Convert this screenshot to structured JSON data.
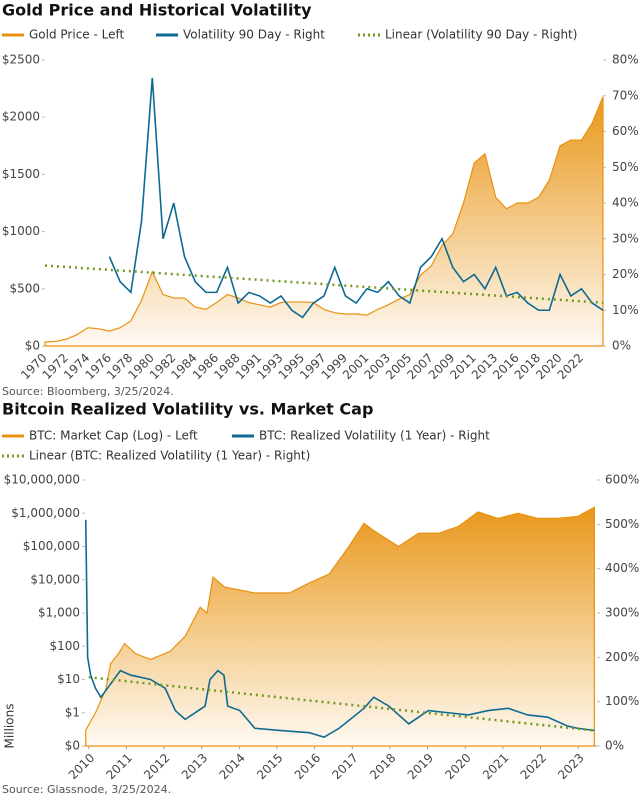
{
  "chart_data": [
    {
      "type": "line",
      "title": "Gold Price and Historical Volatility",
      "source": "Source: Bloomberg, 3/25/2024.",
      "categories": [
        "1970",
        null,
        "1972",
        null,
        "1974",
        null,
        "1976",
        null,
        "1978",
        null,
        "1980",
        null,
        "1982",
        null,
        "1984",
        null,
        "1986",
        null,
        "1988",
        null,
        "1991",
        null,
        "1993",
        null,
        "1995",
        null,
        "1997",
        null,
        "1999",
        null,
        "2001",
        null,
        "2003",
        null,
        "2005",
        null,
        "2007",
        null,
        "2009",
        null,
        "2011",
        null,
        "2013",
        null,
        "2016",
        null,
        "2018",
        null,
        "2020",
        null,
        "2022",
        null,
        null
      ],
      "series": [
        {
          "name": "Gold Price - Left",
          "color": "#e8920f",
          "style": "area",
          "values": [
            35,
            40,
            60,
            100,
            160,
            150,
            130,
            160,
            220,
            400,
            650,
            450,
            420,
            420,
            340,
            320,
            380,
            450,
            420,
            380,
            360,
            340,
            380,
            385,
            385,
            380,
            320,
            290,
            280,
            280,
            270,
            320,
            360,
            410,
            450,
            620,
            700,
            880,
            980,
            1250,
            1600,
            1680,
            1300,
            1200,
            1250,
            1250,
            1300,
            1450,
            1750,
            1800,
            1800,
            1950,
            2180
          ]
        },
        {
          "name": "Volatility 90 Day - Right",
          "color": "#0e6a92",
          "style": "line",
          "axis": "y2",
          "values": [
            null,
            null,
            null,
            null,
            null,
            null,
            25,
            18,
            15,
            35,
            75,
            30,
            40,
            25,
            18,
            15,
            15,
            22,
            12,
            15,
            14,
            12,
            14,
            10,
            8,
            12,
            14,
            22,
            14,
            12,
            16,
            15,
            18,
            14,
            12,
            22,
            25,
            30,
            22,
            18,
            20,
            16,
            22,
            14,
            15,
            12,
            10,
            10,
            20,
            14,
            16,
            12,
            10
          ]
        },
        {
          "name": "Linear (Volatility 90 Day - Right)",
          "color": "#6f9a1f",
          "style": "dotted",
          "axis": "y2",
          "values": [
            22.5,
            22.3,
            22.1,
            21.9,
            21.7,
            21.5,
            21.3,
            21.1,
            20.9,
            20.7,
            20.5,
            20.3,
            20.1,
            19.9,
            19.7,
            19.5,
            19.3,
            19.1,
            18.9,
            18.7,
            18.5,
            18.3,
            18.1,
            17.9,
            17.7,
            17.5,
            17.3,
            17.1,
            16.9,
            16.7,
            16.5,
            16.3,
            16.1,
            15.9,
            15.7,
            15.5,
            15.3,
            15.1,
            14.9,
            14.7,
            14.5,
            14.3,
            14.1,
            13.9,
            13.7,
            13.5,
            13.3,
            13.1,
            12.9,
            12.7,
            12.5,
            12.3,
            12.1
          ]
        }
      ],
      "ylim": [
        0,
        2500
      ],
      "yticks": [
        {
          "value": 0,
          "label": "$0"
        },
        {
          "value": 500,
          "label": "$500"
        },
        {
          "value": 1000,
          "label": "$1000"
        },
        {
          "value": 1500,
          "label": "$1500"
        },
        {
          "value": 2000,
          "label": "$2000"
        },
        {
          "value": 2500,
          "label": "$2500"
        }
      ],
      "y2lim": [
        0,
        80
      ],
      "y2ticks": [
        {
          "value": 0,
          "label": "0%"
        },
        {
          "value": 10,
          "label": "10%"
        },
        {
          "value": 20,
          "label": "20%"
        },
        {
          "value": 30,
          "label": "30%"
        },
        {
          "value": 40,
          "label": "40%"
        },
        {
          "value": 50,
          "label": "50%"
        },
        {
          "value": 60,
          "label": "60%"
        },
        {
          "value": 70,
          "label": "70%"
        },
        {
          "value": 80,
          "label": "80%"
        }
      ]
    },
    {
      "type": "line",
      "title": "Bitcoin Realized Volatility vs. Market Cap",
      "source": "Source: Glassnode, 3/25/2024.",
      "ylabel": "Millions",
      "xlim": [
        2009.9,
        2023.5
      ],
      "xticks": [
        2010,
        2011,
        2012,
        2013,
        2014,
        2015,
        2016,
        2017,
        2018,
        2019,
        2020,
        2021,
        2022,
        2023
      ],
      "series": [
        {
          "name": "BTC: Market Cap (Log) - Left",
          "color": "#e8920f",
          "style": "area",
          "x": [
            2009.92,
            2010.18,
            2010.45,
            2010.58,
            2010.79,
            2010.95,
            2011.24,
            2011.64,
            2012.16,
            2012.56,
            2012.96,
            2013.14,
            2013.3,
            2013.61,
            2014.41,
            2015.33,
            2015.86,
            2016.39,
            2016.91,
            2017.31,
            2017.57,
            2018.23,
            2018.76,
            2019.29,
            2019.82,
            2020.34,
            2020.87,
            2021.4,
            2021.93,
            2022.45,
            2022.98,
            2023.43
          ],
          "values": [
            0.3,
            1,
            5,
            30,
            60,
            120,
            60,
            40,
            70,
            200,
            1500,
            1000,
            12000,
            6000,
            4000,
            4000,
            8000,
            15000,
            100000,
            500000,
            300000,
            100000,
            250000,
            250000,
            400000,
            1100000,
            700000,
            1000000,
            700000,
            700000,
            800000,
            1500000
          ]
        },
        {
          "name": "BTC: Realized Volatility (1 Year) - Right",
          "color": "#0e6a92",
          "style": "line",
          "axis": "y2",
          "x": [
            2009.92,
            2009.97,
            2010.05,
            2010.18,
            2010.32,
            2010.58,
            2010.84,
            2011.11,
            2011.64,
            2012.03,
            2012.3,
            2012.56,
            2013.09,
            2013.22,
            2013.43,
            2013.59,
            2013.69,
            2014.01,
            2014.41,
            2015.07,
            2015.86,
            2016.25,
            2016.65,
            2017.31,
            2017.57,
            2017.97,
            2018.5,
            2019.02,
            2019.55,
            2020.08,
            2020.61,
            2021.14,
            2021.66,
            2022.19,
            2022.72,
            2022.98,
            2023.43
          ],
          "values": [
            510,
            200,
            160,
            130,
            110,
            140,
            170,
            160,
            150,
            130,
            80,
            60,
            90,
            150,
            170,
            160,
            90,
            80,
            40,
            35,
            30,
            20,
            40,
            85,
            110,
            90,
            50,
            80,
            75,
            70,
            80,
            85,
            70,
            65,
            45,
            40,
            35
          ]
        },
        {
          "name": "Linear (BTC: Realized Volatility (1 Year) - Right)",
          "color": "#6f9a1f",
          "style": "dotted",
          "axis": "y2",
          "x": [
            2010.0,
            2023.43
          ],
          "values": [
            155,
            35
          ]
        }
      ],
      "yscale": "log",
      "ylim": [
        0.1,
        10000000
      ],
      "yticks": [
        {
          "value": 0.1,
          "label": "$0"
        },
        {
          "value": 1,
          "label": "$1"
        },
        {
          "value": 10,
          "label": "$10"
        },
        {
          "value": 100,
          "label": "$100"
        },
        {
          "value": 1000,
          "label": "$1,000"
        },
        {
          "value": 10000,
          "label": "$10,000"
        },
        {
          "value": 100000,
          "label": "$100,000"
        },
        {
          "value": 1000000,
          "label": "$1,000,000"
        },
        {
          "value": 10000000,
          "label": "$10,000,000"
        }
      ],
      "y2lim": [
        0,
        600
      ],
      "y2ticks": [
        {
          "value": 0,
          "label": "0%"
        },
        {
          "value": 100,
          "label": "100%"
        },
        {
          "value": 200,
          "label": "200%"
        },
        {
          "value": 300,
          "label": "300%"
        },
        {
          "value": 400,
          "label": "400%"
        },
        {
          "value": 500,
          "label": "500%"
        },
        {
          "value": 600,
          "label": "600%"
        }
      ]
    }
  ]
}
